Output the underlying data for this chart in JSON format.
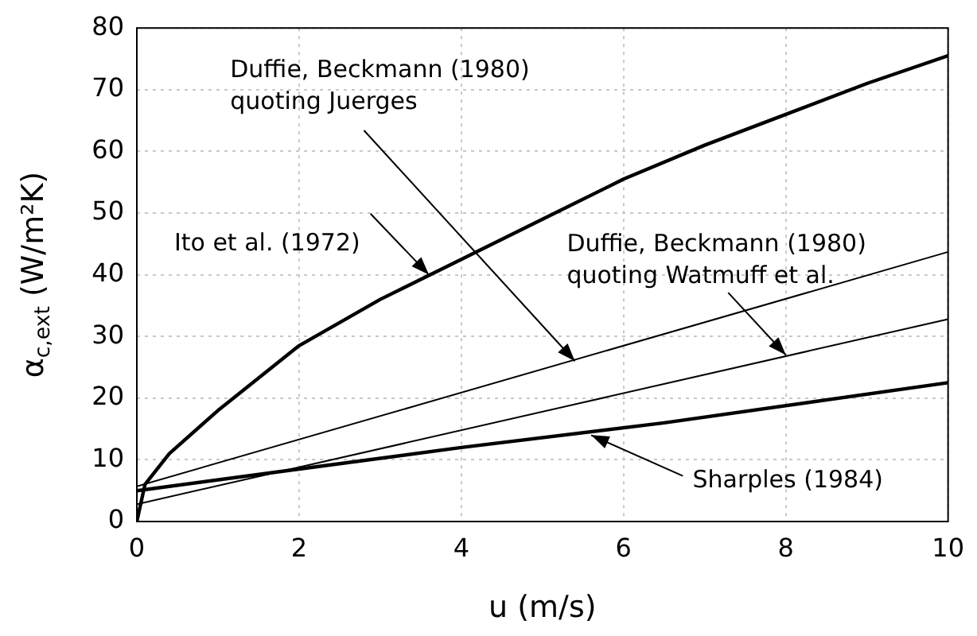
{
  "chart_data": {
    "type": "line",
    "xlabel": "u (m/s)",
    "ylabel": "α$_{c,ext}$ (W/m²K)",
    "xlim": [
      0,
      10
    ],
    "xticks": [
      0,
      2,
      4,
      6,
      8,
      10
    ],
    "ylim": [
      0,
      80
    ],
    "yticks": [
      0,
      10,
      20,
      30,
      40,
      50,
      60,
      70,
      80
    ],
    "grid": true,
    "legend": false,
    "marker": "none",
    "line_style": "solid",
    "series": [
      {
        "color": "#000000",
        "x": [
          0,
          0.1,
          0.4,
          1,
          2,
          3,
          4,
          5,
          6,
          7,
          8,
          9,
          10
        ],
        "values": [
          0,
          6,
          11,
          18,
          28.5,
          36,
          42.5,
          49,
          55.5,
          61,
          66,
          71,
          75.5
        ]
      },
      {
        "color": "#000000",
        "x": [
          0,
          10
        ],
        "values": [
          5.7,
          43.7
        ]
      },
      {
        "color": "#000000",
        "x": [
          0,
          10
        ],
        "values": [
          2.8,
          32.8
        ]
      },
      {
        "color": "#000000",
        "x": [
          0,
          2,
          4,
          6.5,
          10
        ],
        "values": [
          5,
          8.5,
          12,
          16,
          22.5
        ]
      }
    ],
    "annotations": [
      {
        "text": "Ito et al. (1972)",
        "x": 3.6,
        "y": 40
      },
      {
        "text": "Duffie, Beckmann (1980)\nquoting Juerges",
        "x": 5.4,
        "y": 26
      },
      {
        "text": "Duffie, Beckmann (1980)\nquoting Watmuff et al.",
        "x": 8,
        "y": 27
      },
      {
        "text": "Sharples (1984)",
        "x": 5.6,
        "y": 14
      }
    ]
  }
}
